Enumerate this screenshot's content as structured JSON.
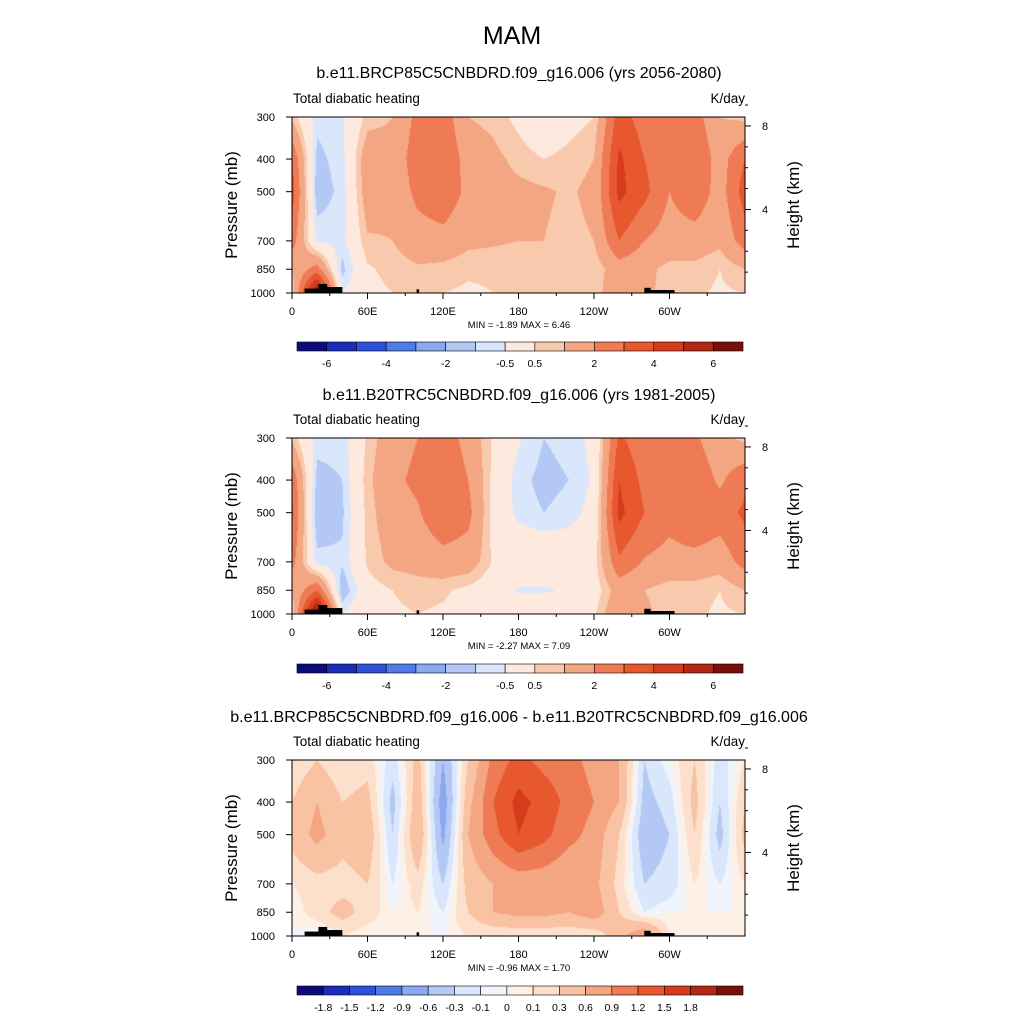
{
  "figure": {
    "title": "MAM"
  },
  "palettes": {
    "abs": [
      "#0b0b7a",
      "#1a2cb8",
      "#2d52d9",
      "#4f7be8",
      "#8aa9ef",
      "#b4c8f5",
      "#d9e6fb",
      "#fde9dd",
      "#f9c9ae",
      "#f4a582",
      "#ef7b55",
      "#e8582f",
      "#d63b1e",
      "#b22715",
      "#7a0e0b"
    ],
    "diff": [
      "#0b0b7a",
      "#1a2cb8",
      "#2d52d9",
      "#4f7be8",
      "#8aa9ef",
      "#b4c8f5",
      "#d9e6fb",
      "#f0f4fc",
      "#fdf0e6",
      "#fde0cc",
      "#f9c2a2",
      "#f4a582",
      "#ef7b55",
      "#e8582f",
      "#d63b1e",
      "#b22715",
      "#7a0e0b"
    ]
  },
  "chart_data": [
    {
      "type": "heatmap",
      "title": "b.e11.BRCP85C5CNBDRD.f09_g16.006 (yrs 2056-2080)",
      "left_label": "Total diabatic heating",
      "right_label": "K/day",
      "ylabel": "Pressure (mb)",
      "ylabel_right": "Height (km)",
      "x_ticks": [
        "0",
        "60E",
        "120E",
        "180",
        "120W",
        "60W"
      ],
      "x_tick_lon": [
        0,
        60,
        120,
        180,
        240,
        300
      ],
      "xlim": [
        0,
        360
      ],
      "y_ticks": [
        "300",
        "400",
        "500",
        "700",
        "850",
        "1000"
      ],
      "y_tick_p": [
        300,
        400,
        500,
        700,
        850,
        1000
      ],
      "ylim": [
        1000,
        300
      ],
      "height_ticks": [
        "8",
        "4"
      ],
      "height_tick_km": [
        8,
        4
      ],
      "stats": "MIN =  -1.89  MAX =   6.46",
      "min": -1.89,
      "max": 6.46,
      "colorbar_labels": [
        "-6",
        "-4",
        "-2",
        "-0.5",
        "0.5",
        "2",
        "4",
        "6"
      ],
      "colorbar_levels": [
        -6,
        -5,
        -4,
        -3,
        -2,
        -1,
        -0.5,
        0.5,
        1,
        2,
        3,
        4,
        5,
        6
      ],
      "palette": "abs",
      "field": {
        "lon": [
          0,
          20,
          40,
          60,
          80,
          100,
          120,
          140,
          160,
          180,
          200,
          220,
          240,
          260,
          280,
          300,
          320,
          340,
          360
        ],
        "p": [
          300,
          400,
          500,
          700,
          850,
          1000
        ],
        "values": [
          [
            0.8,
            -0.8,
            -0.6,
            0.7,
            1.0,
            2.3,
            2.6,
            1.0,
            0.8,
            0.3,
            -0.3,
            0.2,
            0.5,
            3.5,
            2.5,
            2.0,
            2.5,
            1.0,
            0.8
          ],
          [
            3.0,
            -1.2,
            -0.7,
            1.6,
            1.3,
            2.6,
            3.0,
            1.5,
            1.2,
            0.8,
            0.5,
            0.7,
            1.0,
            4.2,
            3.0,
            2.2,
            3.0,
            1.5,
            3.0
          ],
          [
            3.5,
            -1.4,
            -0.8,
            1.5,
            1.2,
            2.3,
            2.8,
            1.7,
            1.3,
            1.2,
            1.1,
            0.9,
            1.2,
            4.3,
            3.3,
            2.0,
            2.8,
            1.5,
            3.5
          ],
          [
            2.5,
            -0.6,
            -0.7,
            0.9,
            1.0,
            1.5,
            1.6,
            1.2,
            1.1,
            1.0,
            1.0,
            0.8,
            1.0,
            3.0,
            2.0,
            1.5,
            1.5,
            1.2,
            2.5
          ],
          [
            1.0,
            2.5,
            -1.2,
            0.4,
            0.7,
            0.9,
            0.8,
            0.6,
            0.6,
            0.6,
            0.6,
            0.5,
            0.6,
            1.5,
            1.2,
            0.8,
            0.8,
            0.5,
            1.0
          ],
          [
            0.5,
            6.5,
            -0.5,
            0.3,
            0.5,
            0.6,
            0.5,
            0.4,
            0.5,
            0.5,
            0.5,
            0.5,
            0.5,
            2.0,
            1.3,
            0.6,
            0.6,
            0.4,
            0.5
          ]
        ]
      },
      "topography": [
        {
          "lon_start": 10,
          "lon_end": 27,
          "p_top": 970
        },
        {
          "lon_start": 21,
          "lon_end": 28,
          "p_top": 940
        },
        {
          "lon_start": 27,
          "lon_end": 40,
          "p_top": 960
        },
        {
          "lon_start": 99,
          "lon_end": 101,
          "p_top": 975
        },
        {
          "lon_start": 280,
          "lon_end": 304,
          "p_top": 980
        },
        {
          "lon_start": 280,
          "lon_end": 285,
          "p_top": 965
        }
      ]
    },
    {
      "type": "heatmap",
      "title": "b.e11.B20TRC5CNBDRD.f09_g16.006 (yrs 1981-2005)",
      "left_label": "Total diabatic heating",
      "right_label": "K/day",
      "ylabel": "Pressure (mb)",
      "ylabel_right": "Height (km)",
      "x_ticks": [
        "0",
        "60E",
        "120E",
        "180",
        "120W",
        "60W"
      ],
      "x_tick_lon": [
        0,
        60,
        120,
        180,
        240,
        300
      ],
      "xlim": [
        0,
        360
      ],
      "y_ticks": [
        "300",
        "400",
        "500",
        "700",
        "850",
        "1000"
      ],
      "y_tick_p": [
        300,
        400,
        500,
        700,
        850,
        1000
      ],
      "ylim": [
        1000,
        300
      ],
      "height_ticks": [
        "8",
        "4"
      ],
      "height_tick_km": [
        8,
        4
      ],
      "stats": "MIN =  -2.27  MAX =   7.09",
      "min": -2.27,
      "max": 7.09,
      "colorbar_labels": [
        "-6",
        "-4",
        "-2",
        "-0.5",
        "0.5",
        "2",
        "4",
        "6"
      ],
      "colorbar_levels": [
        -6,
        -5,
        -4,
        -3,
        -2,
        -1,
        -0.5,
        0.5,
        1,
        2,
        3,
        4,
        5,
        6
      ],
      "palette": "abs",
      "field": {
        "lon": [
          0,
          20,
          40,
          60,
          80,
          100,
          120,
          140,
          160,
          180,
          200,
          220,
          240,
          260,
          280,
          300,
          320,
          340,
          360
        ],
        "p": [
          300,
          400,
          500,
          700,
          850,
          1000
        ],
        "values": [
          [
            0.8,
            -0.8,
            -0.8,
            0.6,
            1.6,
            2.0,
            2.6,
            1.6,
            0.4,
            -0.4,
            -1.0,
            -0.8,
            -0.3,
            3.2,
            2.3,
            2.0,
            2.2,
            1.2,
            0.8
          ],
          [
            2.8,
            -1.2,
            -1.0,
            0.8,
            1.8,
            2.2,
            3.0,
            2.0,
            0.3,
            -0.8,
            -1.2,
            -1.0,
            -0.4,
            4.0,
            2.7,
            2.4,
            2.8,
            1.8,
            2.8
          ],
          [
            3.2,
            -1.5,
            -1.1,
            0.7,
            1.6,
            1.9,
            2.8,
            2.3,
            0.2,
            -0.7,
            -1.0,
            -0.8,
            -0.2,
            4.3,
            3.0,
            2.4,
            3.0,
            2.5,
            3.2
          ],
          [
            2.4,
            -0.8,
            -0.9,
            0.6,
            1.2,
            1.3,
            1.6,
            1.5,
            0.4,
            0.3,
            0.3,
            0.2,
            0.2,
            2.8,
            1.9,
            1.6,
            1.6,
            1.4,
            2.4
          ],
          [
            1.0,
            3.0,
            -1.5,
            0.2,
            0.5,
            0.7,
            0.6,
            0.3,
            0.0,
            -0.6,
            -0.6,
            -0.4,
            0.1,
            1.4,
            1.0,
            0.7,
            0.7,
            0.5,
            1.0
          ],
          [
            0.5,
            7.0,
            -0.5,
            0.3,
            0.4,
            0.5,
            0.4,
            0.3,
            0.3,
            0.3,
            0.3,
            0.3,
            0.4,
            1.8,
            1.2,
            0.6,
            0.6,
            0.4,
            0.5
          ]
        ]
      },
      "topography": [
        {
          "lon_start": 10,
          "lon_end": 27,
          "p_top": 970
        },
        {
          "lon_start": 21,
          "lon_end": 28,
          "p_top": 940
        },
        {
          "lon_start": 27,
          "lon_end": 40,
          "p_top": 960
        },
        {
          "lon_start": 99,
          "lon_end": 101,
          "p_top": 975
        },
        {
          "lon_start": 280,
          "lon_end": 304,
          "p_top": 980
        },
        {
          "lon_start": 280,
          "lon_end": 285,
          "p_top": 965
        }
      ]
    },
    {
      "type": "heatmap",
      "title": "b.e11.BRCP85C5CNBDRD.f09_g16.006 - b.e11.B20TRC5CNBDRD.f09_g16.006",
      "left_label": "Total diabatic heating",
      "right_label": "K/day",
      "ylabel": "Pressure (mb)",
      "ylabel_right": "Height (km)",
      "x_ticks": [
        "0",
        "60E",
        "120E",
        "180",
        "120W",
        "60W"
      ],
      "x_tick_lon": [
        0,
        60,
        120,
        180,
        240,
        300
      ],
      "xlim": [
        0,
        360
      ],
      "y_ticks": [
        "300",
        "400",
        "500",
        "700",
        "850",
        "1000"
      ],
      "y_tick_p": [
        300,
        400,
        500,
        700,
        850,
        1000
      ],
      "ylim": [
        1000,
        300
      ],
      "height_ticks": [
        "8",
        "4"
      ],
      "height_tick_km": [
        8,
        4
      ],
      "stats": "MIN =  -0.96  MAX =   1.70",
      "min": -0.96,
      "max": 1.7,
      "colorbar_labels": [
        "-1.8",
        "-1.5",
        "-1.2",
        "-0.9",
        "-0.6",
        "-0.3",
        "-0.1",
        "0",
        "0.1",
        "0.3",
        "0.6",
        "0.9",
        "1.2",
        "1.5",
        "1.8"
      ],
      "colorbar_levels": [
        -1.8,
        -1.5,
        -1.2,
        -0.9,
        -0.6,
        -0.3,
        -0.1,
        0,
        0.1,
        0.3,
        0.6,
        0.9,
        1.2,
        1.5,
        1.8
      ],
      "palette": "diff",
      "field": {
        "lon": [
          0,
          20,
          40,
          60,
          80,
          100,
          120,
          140,
          160,
          180,
          200,
          220,
          240,
          260,
          280,
          300,
          320,
          340,
          360
        ],
        "p": [
          300,
          400,
          500,
          700,
          850,
          1000
        ],
        "values": [
          [
            0.1,
            0.3,
            0.1,
            0.2,
            -0.2,
            0.4,
            -0.6,
            0.3,
            1.0,
            1.3,
            1.1,
            1.0,
            0.8,
            0.6,
            -0.3,
            0.0,
            0.3,
            -0.2,
            0.1
          ],
          [
            0.3,
            0.6,
            0.3,
            0.4,
            -0.4,
            0.5,
            -0.8,
            0.5,
            1.2,
            1.6,
            1.4,
            1.1,
            0.9,
            0.6,
            -0.4,
            -0.2,
            0.4,
            -0.3,
            0.3
          ],
          [
            0.4,
            0.7,
            0.4,
            0.5,
            -0.3,
            0.6,
            -0.7,
            0.6,
            1.1,
            1.5,
            1.3,
            1.0,
            0.8,
            0.3,
            -0.5,
            -0.3,
            0.3,
            -0.4,
            0.4
          ],
          [
            0.1,
            0.2,
            0.2,
            0.3,
            -0.1,
            0.2,
            -0.3,
            0.4,
            0.6,
            0.7,
            0.7,
            0.6,
            0.7,
            0.2,
            -0.3,
            -0.2,
            0.1,
            -0.1,
            0.1
          ],
          [
            0.0,
            0.2,
            0.4,
            0.2,
            0.0,
            0.1,
            -0.1,
            0.3,
            0.6,
            0.7,
            0.7,
            0.6,
            0.8,
            0.3,
            -0.1,
            0.0,
            0.0,
            0.0,
            0.0
          ],
          [
            0.0,
            -0.1,
            0.1,
            0.0,
            0.0,
            0.0,
            0.0,
            0.1,
            0.1,
            0.1,
            0.1,
            0.1,
            0.1,
            0.5,
            0.9,
            0.1,
            0.0,
            0.0,
            0.0
          ]
        ]
      },
      "topography": [
        {
          "lon_start": 10,
          "lon_end": 27,
          "p_top": 970
        },
        {
          "lon_start": 21,
          "lon_end": 28,
          "p_top": 940
        },
        {
          "lon_start": 27,
          "lon_end": 40,
          "p_top": 960
        },
        {
          "lon_start": 99,
          "lon_end": 101,
          "p_top": 975
        },
        {
          "lon_start": 280,
          "lon_end": 304,
          "p_top": 980
        },
        {
          "lon_start": 280,
          "lon_end": 285,
          "p_top": 965
        }
      ]
    }
  ]
}
